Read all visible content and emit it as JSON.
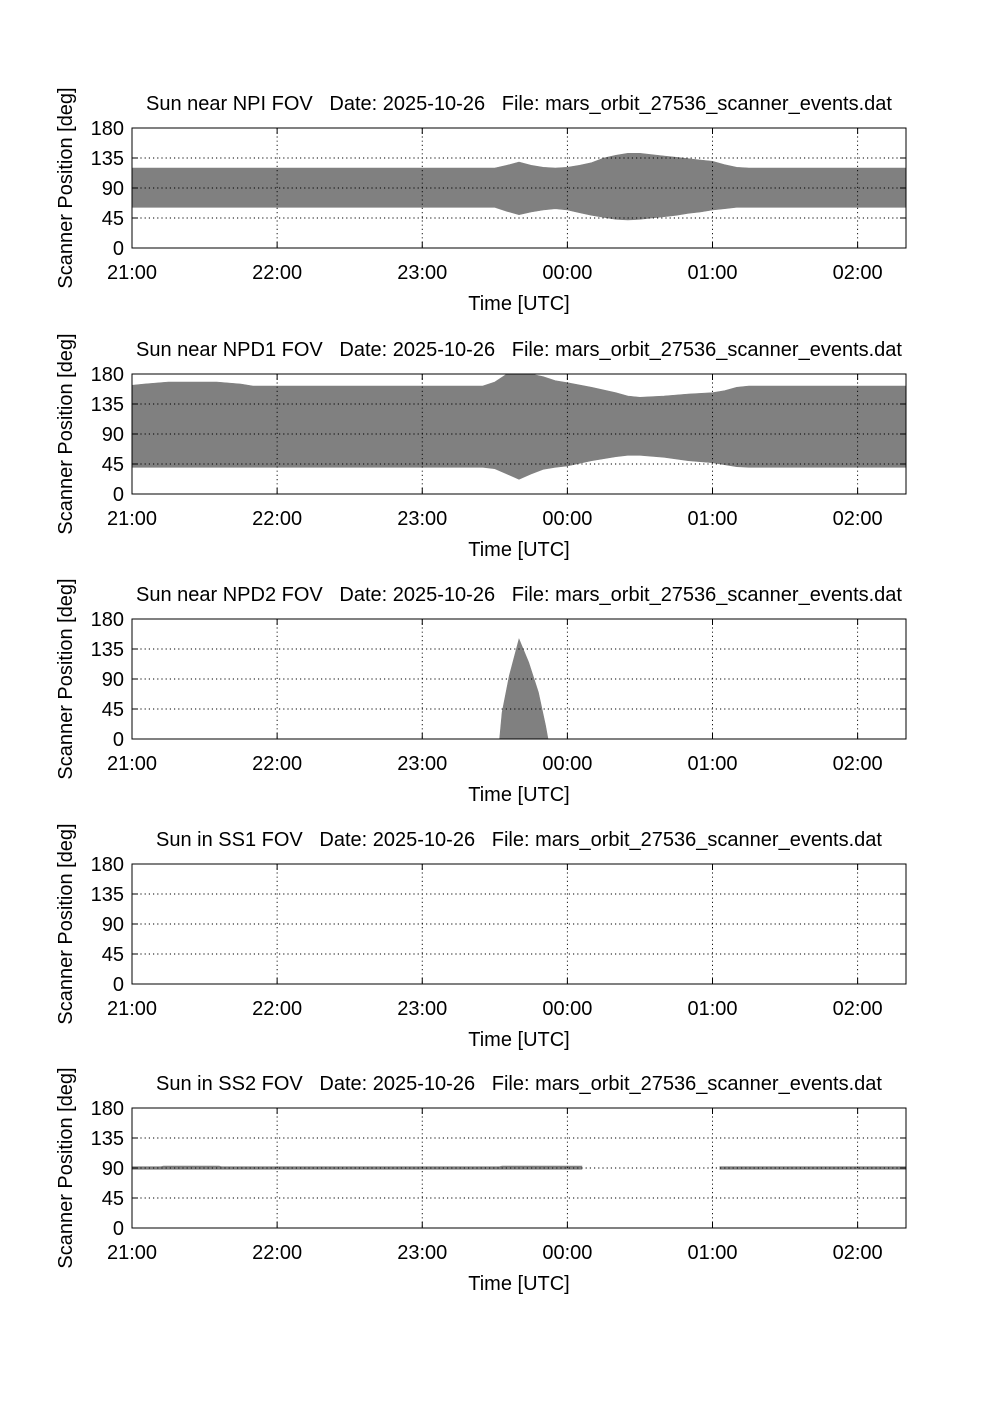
{
  "chart_data": [
    {
      "type": "area",
      "title": "Sun near NPI FOV   Date: 2025-10-26   File: mars_orbit_27536_scanner_events.dat",
      "xlabel": "Time [UTC]",
      "ylabel": "Scanner Position [deg]",
      "x_ticks": [
        "21:00",
        "22:00",
        "23:00",
        "00:00",
        "01:00",
        "02:00"
      ],
      "y_ticks": [
        "0",
        "45",
        "90",
        "135",
        "180"
      ],
      "xlim": [
        "21:00",
        "02:20"
      ],
      "ylim": [
        0,
        180
      ],
      "grid": true,
      "band": {
        "x": [
          "21:00",
          "23:30",
          "23:35",
          "23:40",
          "23:45",
          "23:50",
          "23:55",
          "00:00",
          "00:05",
          "00:10",
          "00:15",
          "00:20",
          "00:25",
          "00:30",
          "00:35",
          "00:40",
          "00:45",
          "00:50",
          "00:55",
          "01:00",
          "01:05",
          "01:10",
          "01:15",
          "02:20"
        ],
        "upper": [
          120,
          120,
          124,
          129,
          124,
          121,
          120,
          121,
          124,
          128,
          135,
          139,
          142,
          142,
          140,
          138,
          136,
          134,
          132,
          130,
          125,
          121,
          120,
          120
        ],
        "lower": [
          61,
          61,
          55,
          50,
          54,
          57,
          59,
          57,
          53,
          49,
          46,
          43,
          42,
          43,
          45,
          47,
          49,
          52,
          54,
          57,
          59,
          61,
          61,
          61
        ]
      }
    },
    {
      "type": "area",
      "title": "Sun near NPD1 FOV   Date: 2025-10-26   File: mars_orbit_27536_scanner_events.dat",
      "xlabel": "Time [UTC]",
      "ylabel": "Scanner Position [deg]",
      "x_ticks": [
        "21:00",
        "22:00",
        "23:00",
        "00:00",
        "01:00",
        "02:00"
      ],
      "y_ticks": [
        "0",
        "45",
        "90",
        "135",
        "180"
      ],
      "xlim": [
        "21:00",
        "02:20"
      ],
      "ylim": [
        0,
        180
      ],
      "grid": true,
      "band": {
        "x": [
          "21:00",
          "21:05",
          "21:15",
          "21:35",
          "21:45",
          "21:50",
          "23:25",
          "23:30",
          "23:35",
          "23:40",
          "23:45",
          "23:50",
          "23:55",
          "00:00",
          "00:10",
          "00:20",
          "00:25",
          "00:30",
          "00:40",
          "00:50",
          "01:00",
          "01:05",
          "01:10",
          "01:15",
          "02:20"
        ],
        "upper": [
          163,
          165,
          168,
          168,
          165,
          162,
          162,
          168,
          180,
          180,
          180,
          176,
          170,
          167,
          160,
          152,
          147,
          145,
          147,
          150,
          152,
          155,
          160,
          162,
          162
        ],
        "lower": [
          40,
          40,
          40,
          40,
          40,
          40,
          40,
          38,
          30,
          22,
          30,
          37,
          40,
          42,
          50,
          56,
          58,
          58,
          55,
          50,
          47,
          44,
          41,
          40,
          40
        ]
      }
    },
    {
      "type": "area",
      "title": "Sun near NPD2 FOV   Date: 2025-10-26   File: mars_orbit_27536_scanner_events.dat",
      "xlabel": "Time [UTC]",
      "ylabel": "Scanner Position [deg]",
      "x_ticks": [
        "21:00",
        "22:00",
        "23:00",
        "00:00",
        "01:00",
        "02:00"
      ],
      "y_ticks": [
        "0",
        "45",
        "90",
        "135",
        "180"
      ],
      "xlim": [
        "21:00",
        "02:20"
      ],
      "ylim": [
        0,
        180
      ],
      "grid": true,
      "band": {
        "x": [
          "23:32",
          "23:33",
          "23:36",
          "23:40",
          "23:44",
          "23:48",
          "23:51",
          "23:52"
        ],
        "upper": [
          0,
          40,
          95,
          150,
          115,
          70,
          20,
          0
        ],
        "lower": [
          0,
          0,
          0,
          0,
          0,
          0,
          0,
          0
        ]
      }
    },
    {
      "type": "area",
      "title": "Sun in SS1 FOV   Date: 2025-10-26   File: mars_orbit_27536_scanner_events.dat",
      "xlabel": "Time [UTC]",
      "ylabel": "Scanner Position [deg]",
      "x_ticks": [
        "21:00",
        "22:00",
        "23:00",
        "00:00",
        "01:00",
        "02:00"
      ],
      "y_ticks": [
        "0",
        "45",
        "90",
        "135",
        "180"
      ],
      "xlim": [
        "21:00",
        "02:20"
      ],
      "ylim": [
        0,
        180
      ],
      "grid": true,
      "band": null
    },
    {
      "type": "area",
      "title": "Sun in SS2 FOV   Date: 2025-10-26   File: mars_orbit_27536_scanner_events.dat",
      "xlabel": "Time [UTC]",
      "ylabel": "Scanner Position [deg]",
      "x_ticks": [
        "21:00",
        "22:00",
        "23:00",
        "00:00",
        "01:00",
        "02:00"
      ],
      "y_ticks": [
        "0",
        "45",
        "90",
        "135",
        "180"
      ],
      "xlim": [
        "21:00",
        "02:20"
      ],
      "ylim": [
        0,
        180
      ],
      "grid": true,
      "segments": [
        {
          "x": [
            "21:00",
            "21:12",
            "21:13",
            "21:36",
            "21:37",
            "23:32",
            "23:33",
            "00:06"
          ],
          "upper": [
            92,
            92,
            93,
            93,
            92,
            92,
            93,
            93
          ],
          "lower": [
            88,
            88,
            88,
            88,
            88,
            88,
            88,
            88
          ]
        },
        {
          "x": [
            "01:03",
            "02:20"
          ],
          "upper": [
            92,
            92
          ],
          "lower": [
            88,
            88
          ]
        }
      ]
    }
  ],
  "colors": {
    "fill": "#808080",
    "axis": "#000000",
    "grid": "#000000",
    "background": "#ffffff"
  }
}
